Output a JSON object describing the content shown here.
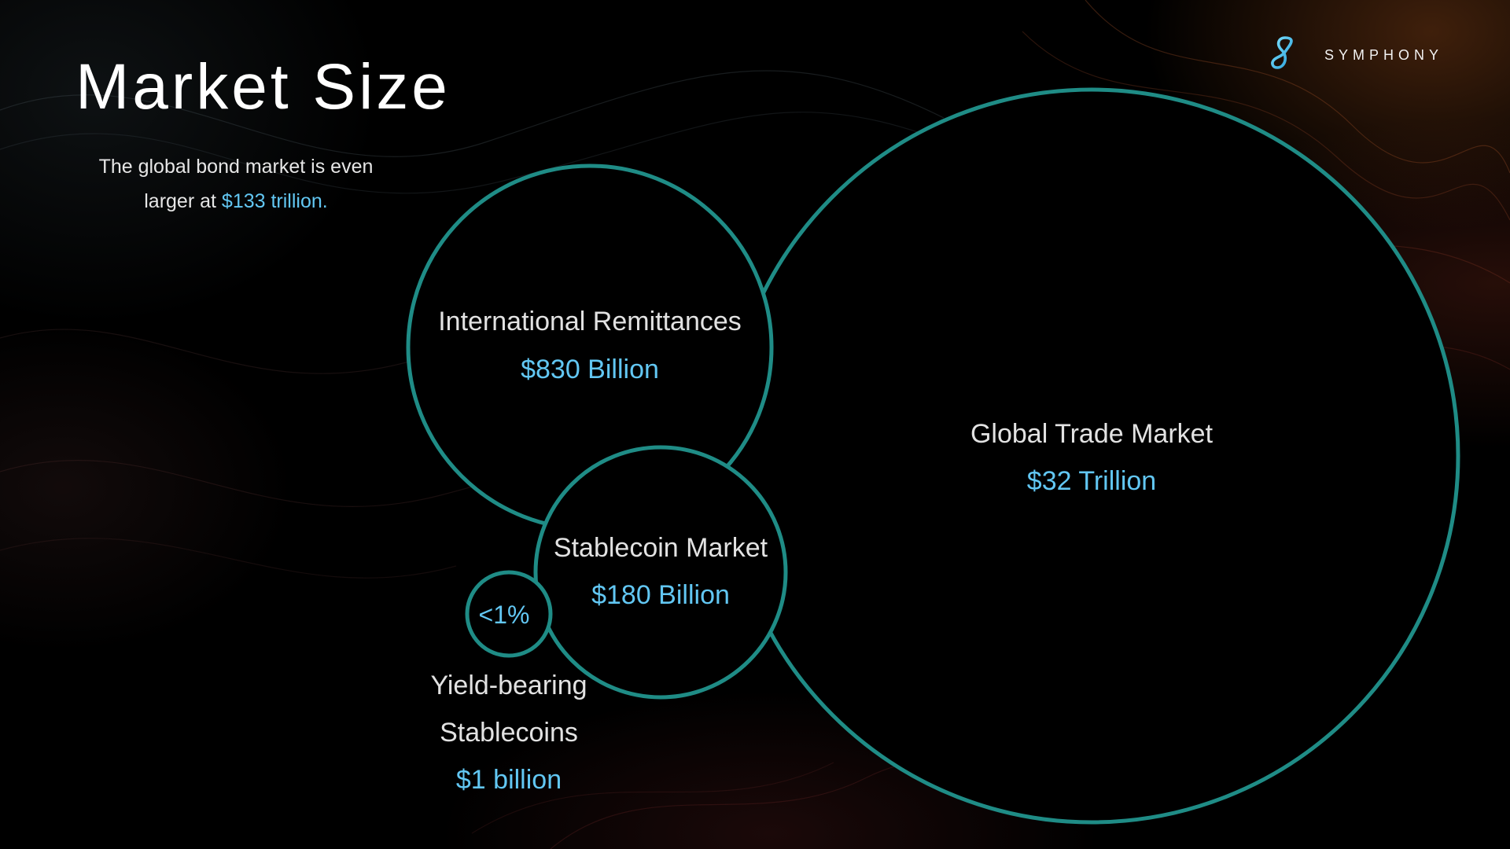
{
  "slide": {
    "title": "Market Size",
    "subtitle": {
      "line1": "The global bond market is even",
      "line2_prefix": "larger at ",
      "line2_highlight": "$133 trillion."
    }
  },
  "brand": {
    "name": "SYMPHONY",
    "logo_icon": "symphony-infinity-icon"
  },
  "markets": {
    "global_trade": {
      "label": "Global Trade Market",
      "value": "$32 Trillion"
    },
    "remittances": {
      "label": "International Remittances",
      "value": "$830 Billion"
    },
    "stablecoin": {
      "label": "Stablecoin Market",
      "value": "$180 Billion"
    },
    "yield_bearing": {
      "inner_label": "<1%",
      "label_line1": "Yield-bearing",
      "label_line2": "Stablecoins",
      "value": "$1 billion"
    }
  },
  "colors": {
    "background": "#000000",
    "circle_stroke": "#1f8c86",
    "accent": "#62c7f3",
    "text": "#e2e2e2"
  }
}
